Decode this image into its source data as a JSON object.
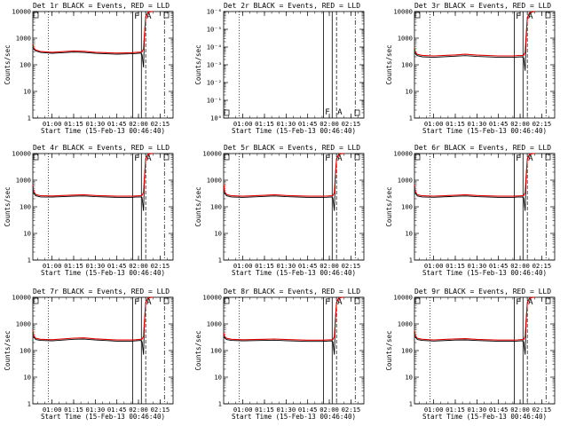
{
  "chart_data": [
    {
      "type": "line",
      "title": "Det 1r BLACK = Events, RED = LLD",
      "ylabel": "Counts/sec",
      "xlabel": "Start Time (15-Feb-13 00:46:40)",
      "x_tick_labels": [
        "01:00",
        "01:15",
        "01:30",
        "01:45",
        "02:00",
        "02:15"
      ],
      "y_tick_labels": [
        "1",
        "10",
        "100",
        "1000",
        "10000"
      ],
      "yscale": "log",
      "ylim": [
        1,
        10000
      ],
      "series": [
        {
          "color": "#000000",
          "x": [
            "00:46:40",
            "00:47:20",
            "00:48:40",
            "00:52:00",
            "01:00:00",
            "01:15:00",
            "01:22:00",
            "01:30:00",
            "01:45:00",
            "01:55:00",
            "01:58:00",
            "02:01:30",
            "02:02:30",
            "02:03:30",
            "02:04:10",
            "02:05:00",
            "02:06:30",
            "02:08:00",
            "02:10:00"
          ],
          "y": [
            550,
            380,
            330,
            290,
            270,
            300,
            290,
            270,
            250,
            260,
            265,
            275,
            240,
            80,
            1300,
            6000,
            9000,
            9800,
            10000
          ]
        },
        {
          "color": "#e00000",
          "x": [
            "00:46:40",
            "00:47:20",
            "00:48:40",
            "00:52:00",
            "01:00:00",
            "01:15:00",
            "01:22:00",
            "01:30:00",
            "01:45:00",
            "01:55:00",
            "01:58:00",
            "02:01:30",
            "02:02:30",
            "02:03:30",
            "02:04:10",
            "02:05:00",
            "02:06:30",
            "02:08:00",
            "02:10:00"
          ],
          "y": [
            620,
            420,
            360,
            315,
            295,
            330,
            320,
            295,
            275,
            285,
            290,
            300,
            310,
            400,
            1500,
            6500,
            9500,
            10000,
            10000
          ]
        }
      ],
      "markers": [
        "F",
        "A"
      ]
    },
    {
      "type": "line",
      "title": "Det 2r BLACK = Events, RED = LLD",
      "ylabel": "Counts/sec",
      "xlabel": "Start Time (15-Feb-13 00:46:40)",
      "x_tick_labels": [
        "01:00",
        "01:15",
        "01:30",
        "01:45",
        "02:00",
        "02:15"
      ],
      "y_tick_labels": [
        "10⁰",
        "10⁻¹",
        "10⁻²",
        "10⁻³",
        "10⁻⁴",
        "10⁻⁵",
        "10⁻⁶"
      ],
      "yscale": "log",
      "series": [],
      "markers": [
        "F",
        "A"
      ]
    },
    {
      "type": "line",
      "title": "Det 3r BLACK = Events, RED = LLD",
      "ylabel": "Counts/sec",
      "xlabel": "Start Time (15-Feb-13 00:46:40)",
      "x_tick_labels": [
        "01:00",
        "01:15",
        "01:30",
        "01:45",
        "02:00",
        "02:15"
      ],
      "y_tick_labels": [
        "1",
        "10",
        "100",
        "1000",
        "10000"
      ],
      "yscale": "log",
      "ylim": [
        1,
        10000
      ],
      "series": [
        {
          "color": "#000000",
          "x": [
            "00:46:40",
            "00:47:20",
            "00:48:40",
            "00:52:00",
            "01:00:00",
            "01:15:00",
            "01:22:00",
            "01:30:00",
            "01:45:00",
            "01:55:00",
            "01:58:00",
            "02:01:30",
            "02:02:30",
            "02:03:30",
            "02:04:10",
            "02:05:00",
            "02:06:30",
            "02:08:00",
            "02:10:00"
          ],
          "y": [
            400,
            260,
            220,
            200,
            190,
            210,
            220,
            205,
            190,
            190,
            195,
            200,
            180,
            60,
            1000,
            5500,
            8500,
            9500,
            10000
          ]
        },
        {
          "color": "#e00000",
          "x": [
            "00:46:40",
            "00:47:20",
            "00:48:40",
            "00:52:00",
            "01:00:00",
            "01:15:00",
            "01:22:00",
            "01:30:00",
            "01:45:00",
            "01:55:00",
            "01:58:00",
            "02:01:30",
            "02:02:30",
            "02:03:30",
            "02:04:10",
            "02:05:00",
            "02:06:30",
            "02:08:00",
            "02:10:00"
          ],
          "y": [
            440,
            290,
            245,
            225,
            215,
            235,
            250,
            230,
            215,
            215,
            220,
            225,
            230,
            300,
            1200,
            6000,
            9000,
            10000,
            10000
          ]
        }
      ],
      "markers": [
        "F",
        "A"
      ]
    },
    {
      "type": "line",
      "title": "Det 4r BLACK = Events, RED = LLD",
      "ylabel": "Counts/sec",
      "xlabel": "Start Time (15-Feb-13 00:46:40)",
      "x_tick_labels": [
        "01:00",
        "01:15",
        "01:30",
        "01:45",
        "02:00",
        "02:15"
      ],
      "y_tick_labels": [
        "1",
        "10",
        "100",
        "1000",
        "10000"
      ],
      "yscale": "log",
      "ylim": [
        1,
        10000
      ],
      "series": [
        {
          "color": "#000000",
          "x": [
            "00:46:40",
            "00:47:20",
            "00:48:40",
            "00:52:00",
            "01:00:00",
            "01:15:00",
            "01:22:00",
            "01:30:00",
            "01:45:00",
            "01:55:00",
            "01:58:00",
            "02:01:30",
            "02:02:30",
            "02:03:30",
            "02:04:10",
            "02:05:00",
            "02:06:30",
            "02:08:00",
            "02:10:00"
          ],
          "y": [
            600,
            330,
            260,
            235,
            230,
            250,
            255,
            240,
            225,
            225,
            230,
            235,
            220,
            70,
            1200,
            6000,
            9000,
            9800,
            10000
          ]
        },
        {
          "color": "#e00000",
          "x": [
            "00:46:40",
            "00:47:20",
            "00:48:40",
            "00:52:00",
            "01:00:00",
            "01:15:00",
            "01:22:00",
            "01:30:00",
            "01:45:00",
            "01:55:00",
            "01:58:00",
            "02:01:30",
            "02:02:30",
            "02:03:30",
            "02:04:10",
            "02:05:00",
            "02:06:30",
            "02:08:00",
            "02:10:00"
          ],
          "y": [
            680,
            370,
            290,
            260,
            255,
            275,
            285,
            265,
            250,
            250,
            255,
            260,
            270,
            350,
            1400,
            6500,
            9500,
            10000,
            10000
          ]
        }
      ],
      "markers": [
        "F",
        "A"
      ]
    },
    {
      "type": "line",
      "title": "Det 5r BLACK = Events, RED = LLD",
      "ylabel": "Counts/sec",
      "xlabel": "Start Time (15-Feb-13 00:46:40)",
      "x_tick_labels": [
        "01:00",
        "01:15",
        "01:30",
        "01:45",
        "02:00",
        "02:15"
      ],
      "y_tick_labels": [
        "1",
        "10",
        "100",
        "1000",
        "10000"
      ],
      "yscale": "log",
      "ylim": [
        1,
        10000
      ],
      "series": [
        {
          "color": "#000000",
          "x": [
            "00:46:40",
            "00:47:20",
            "00:48:40",
            "00:52:00",
            "01:00:00",
            "01:15:00",
            "01:22:00",
            "01:30:00",
            "01:45:00",
            "01:55:00",
            "01:58:00",
            "02:01:30",
            "02:02:30",
            "02:03:30",
            "02:04:10",
            "02:05:00",
            "02:06:30",
            "02:08:00",
            "02:10:00"
          ],
          "y": [
            650,
            330,
            260,
            235,
            225,
            245,
            255,
            240,
            225,
            225,
            228,
            235,
            215,
            70,
            1200,
            6000,
            9000,
            9800,
            10000
          ]
        },
        {
          "color": "#e00000",
          "x": [
            "00:46:40",
            "00:47:20",
            "00:48:40",
            "00:52:00",
            "01:00:00",
            "01:15:00",
            "01:22:00",
            "01:30:00",
            "01:45:00",
            "01:55:00",
            "01:58:00",
            "02:01:30",
            "02:02:30",
            "02:03:30",
            "02:04:10",
            "02:05:00",
            "02:06:30",
            "02:08:00",
            "02:10:00"
          ],
          "y": [
            720,
            370,
            290,
            260,
            250,
            270,
            285,
            265,
            250,
            250,
            252,
            260,
            265,
            340,
            1400,
            6500,
            9500,
            10000,
            10000
          ]
        }
      ],
      "markers": [
        "F",
        "A"
      ]
    },
    {
      "type": "line",
      "title": "Det 6r BLACK = Events, RED = LLD",
      "ylabel": "Counts/sec",
      "xlabel": "Start Time (15-Feb-13 00:46:40)",
      "x_tick_labels": [
        "01:00",
        "01:15",
        "01:30",
        "01:45",
        "02:00",
        "02:15"
      ],
      "y_tick_labels": [
        "1",
        "10",
        "100",
        "1000",
        "10000"
      ],
      "yscale": "log",
      "ylim": [
        1,
        10000
      ],
      "series": [
        {
          "color": "#000000",
          "x": [
            "00:46:40",
            "00:47:20",
            "00:48:40",
            "00:52:00",
            "01:00:00",
            "01:15:00",
            "01:22:00",
            "01:30:00",
            "01:45:00",
            "01:55:00",
            "01:58:00",
            "02:01:30",
            "02:02:30",
            "02:03:30",
            "02:04:10",
            "02:05:00",
            "02:06:30",
            "02:08:00",
            "02:10:00"
          ],
          "y": [
            620,
            330,
            255,
            235,
            228,
            248,
            255,
            240,
            225,
            225,
            230,
            235,
            215,
            70,
            1200,
            6000,
            9000,
            9800,
            10000
          ]
        },
        {
          "color": "#e00000",
          "x": [
            "00:46:40",
            "00:47:20",
            "00:48:40",
            "00:52:00",
            "01:00:00",
            "01:15:00",
            "01:22:00",
            "01:30:00",
            "01:45:00",
            "01:55:00",
            "01:58:00",
            "02:01:30",
            "02:02:30",
            "02:03:30",
            "02:04:10",
            "02:05:00",
            "02:06:30",
            "02:08:00",
            "02:10:00"
          ],
          "y": [
            690,
            370,
            285,
            260,
            252,
            272,
            285,
            265,
            250,
            250,
            255,
            260,
            268,
            345,
            1400,
            6500,
            9500,
            10000,
            10000
          ]
        }
      ],
      "markers": [
        "F",
        "A"
      ]
    },
    {
      "type": "line",
      "title": "Det 7r BLACK = Events, RED = LLD",
      "ylabel": "Counts/sec",
      "xlabel": "Start Time (15-Feb-13 00:46:40)",
      "x_tick_labels": [
        "01:00",
        "01:15",
        "01:30",
        "01:45",
        "02:00",
        "02:15"
      ],
      "y_tick_labels": [
        "1",
        "10",
        "100",
        "1000",
        "10000"
      ],
      "yscale": "log",
      "ylim": [
        1,
        10000
      ],
      "series": [
        {
          "color": "#000000",
          "x": [
            "00:46:40",
            "00:47:20",
            "00:48:40",
            "00:52:00",
            "01:00:00",
            "01:15:00",
            "01:22:00",
            "01:30:00",
            "01:45:00",
            "01:55:00",
            "01:58:00",
            "02:01:30",
            "02:02:30",
            "02:03:30",
            "02:04:10",
            "02:05:00",
            "02:06:30",
            "02:08:00",
            "02:10:00"
          ],
          "y": [
            500,
            320,
            260,
            240,
            230,
            265,
            270,
            250,
            225,
            225,
            230,
            240,
            215,
            70,
            1200,
            6000,
            9000,
            9800,
            10000
          ]
        },
        {
          "color": "#e00000",
          "x": [
            "00:46:40",
            "00:47:20",
            "00:48:40",
            "00:52:00",
            "01:00:00",
            "01:15:00",
            "01:22:00",
            "01:30:00",
            "01:45:00",
            "01:55:00",
            "01:58:00",
            "02:01:30",
            "02:02:30",
            "02:03:30",
            "02:04:10",
            "02:05:00",
            "02:06:30",
            "02:08:00",
            "02:10:00"
          ],
          "y": [
            560,
            355,
            290,
            265,
            255,
            292,
            300,
            275,
            250,
            250,
            255,
            265,
            270,
            345,
            1400,
            6500,
            9500,
            10000,
            10000
          ]
        }
      ],
      "markers": [
        "F",
        "A"
      ]
    },
    {
      "type": "line",
      "title": "Det 8r BLACK = Events, RED = LLD",
      "ylabel": "Counts/sec",
      "xlabel": "Start Time (15-Feb-13 00:46:40)",
      "x_tick_labels": [
        "01:00",
        "01:15",
        "01:30",
        "01:45",
        "02:00",
        "02:15"
      ],
      "y_tick_labels": [
        "1",
        "10",
        "100",
        "1000",
        "10000"
      ],
      "yscale": "log",
      "ylim": [
        1,
        10000
      ],
      "series": [
        {
          "color": "#000000",
          "x": [
            "00:46:40",
            "00:47:20",
            "00:48:40",
            "00:52:00",
            "01:00:00",
            "01:15:00",
            "01:22:00",
            "01:30:00",
            "01:45:00",
            "01:55:00",
            "01:58:00",
            "02:01:30",
            "02:02:30",
            "02:03:30",
            "02:04:10",
            "02:05:00",
            "02:06:30",
            "02:08:00",
            "02:10:00"
          ],
          "y": [
            420,
            300,
            260,
            240,
            230,
            240,
            245,
            235,
            220,
            220,
            225,
            230,
            210,
            70,
            1200,
            6000,
            9000,
            9800,
            10000
          ]
        },
        {
          "color": "#e00000",
          "x": [
            "00:46:40",
            "00:47:20",
            "00:48:40",
            "00:52:00",
            "01:00:00",
            "01:15:00",
            "01:22:00",
            "01:30:00",
            "01:45:00",
            "01:55:00",
            "01:58:00",
            "02:01:30",
            "02:02:30",
            "02:03:30",
            "02:04:10",
            "02:05:00",
            "02:06:30",
            "02:08:00",
            "02:10:00"
          ],
          "y": [
            470,
            335,
            290,
            265,
            255,
            265,
            272,
            260,
            245,
            245,
            250,
            255,
            262,
            340,
            1400,
            6500,
            9500,
            10000,
            10000
          ]
        }
      ],
      "markers": [
        "F",
        "A"
      ]
    },
    {
      "type": "line",
      "title": "Det 9r BLACK = Events, RED = LLD",
      "ylabel": "Counts/sec",
      "xlabel": "Start Time (15-Feb-13 00:46:40)",
      "x_tick_labels": [
        "01:00",
        "01:15",
        "01:30",
        "01:45",
        "02:00",
        "02:15"
      ],
      "y_tick_labels": [
        "1",
        "10",
        "100",
        "1000",
        "10000"
      ],
      "yscale": "log",
      "ylim": [
        1,
        10000
      ],
      "series": [
        {
          "color": "#000000",
          "x": [
            "00:46:40",
            "00:47:20",
            "00:48:40",
            "00:52:00",
            "01:00:00",
            "01:15:00",
            "01:22:00",
            "01:30:00",
            "01:45:00",
            "01:55:00",
            "01:58:00",
            "02:01:30",
            "02:02:30",
            "02:03:30",
            "02:04:10",
            "02:05:00",
            "02:06:30",
            "02:08:00",
            "02:10:00"
          ],
          "y": [
            520,
            320,
            260,
            240,
            228,
            248,
            252,
            238,
            222,
            222,
            228,
            235,
            212,
            70,
            1200,
            6000,
            9000,
            9800,
            10000
          ]
        },
        {
          "color": "#e00000",
          "x": [
            "00:46:40",
            "00:47:20",
            "00:48:40",
            "00:52:00",
            "01:00:00",
            "01:15:00",
            "01:22:00",
            "01:30:00",
            "01:45:00",
            "01:55:00",
            "01:58:00",
            "02:01:30",
            "02:02:30",
            "02:03:30",
            "02:04:10",
            "02:05:00",
            "02:06:30",
            "02:08:00",
            "02:10:00"
          ],
          "y": [
            580,
            355,
            290,
            265,
            252,
            274,
            280,
            264,
            247,
            247,
            252,
            260,
            265,
            342,
            1400,
            6500,
            9500,
            10000,
            10000
          ]
        }
      ],
      "markers": [
        "F",
        "A"
      ]
    }
  ]
}
